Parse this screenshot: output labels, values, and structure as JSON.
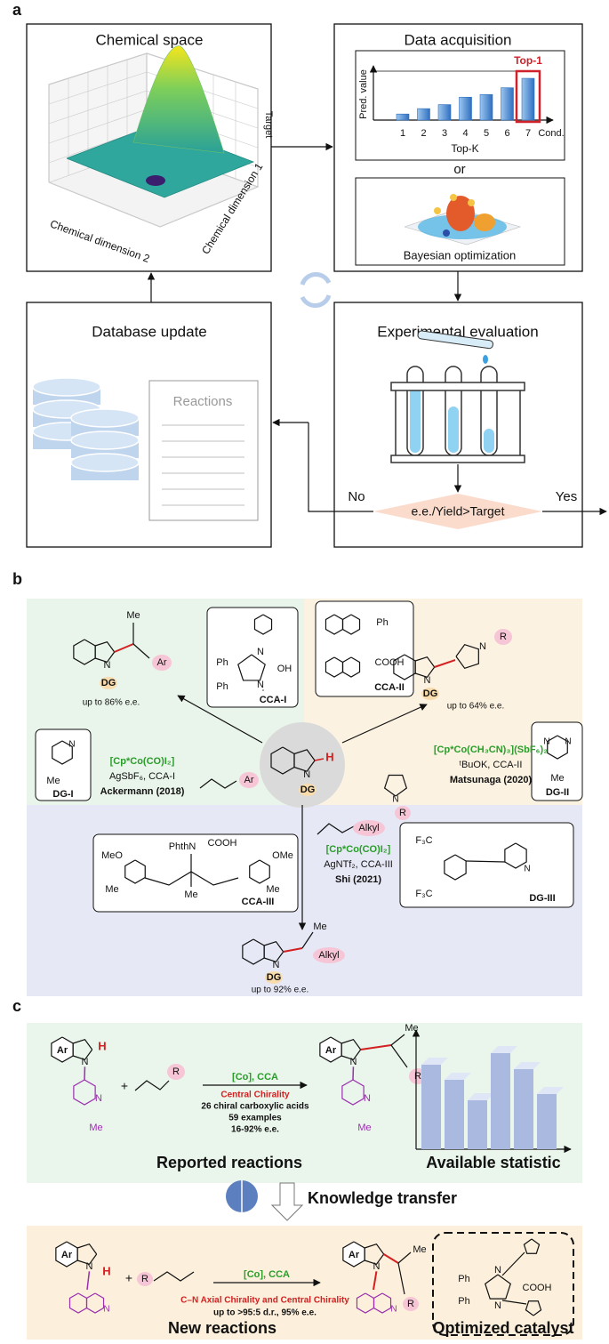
{
  "panel_a": {
    "label": "a",
    "chemical_space": {
      "title": "Chemical space",
      "z_axis_label": "Target",
      "axis_1_label": "Chemical dimension 1",
      "axis_2_label": "Chemical dimension 2"
    },
    "data_acquisition": {
      "title": "Data acquisition",
      "chart": {
        "type": "bar",
        "y_label": "Pred. value",
        "x_label": "Top-K",
        "x_end_label": "Cond.",
        "highlight_label": "Top-1",
        "categories": [
          "1",
          "2",
          "3",
          "4",
          "5",
          "6",
          "7"
        ],
        "values": [
          0.9,
          1.7,
          2.3,
          3.4,
          3.8,
          4.8,
          6.2
        ],
        "ylim": [
          0,
          7
        ],
        "color": "#2f6fc0",
        "highlight_color": "#d0202a"
      },
      "connector": "or",
      "alternative": "Bayesian optimization"
    },
    "database_update": {
      "title": "Database update",
      "document_title": "Reactions"
    },
    "experimental_evaluation": {
      "title": "Experimental evaluation",
      "decision": "e.e./Yield>Target",
      "no_label": "No",
      "yes_label": "Yes"
    }
  },
  "panel_b": {
    "label": "b",
    "left_product": {
      "methyl": "Me",
      "aryl": "Ar",
      "nitrogen": "N",
      "directing_group": "DG",
      "selectivity": "up to 86% e.e."
    },
    "cca_1": {
      "phenyl_1": "Ph",
      "phenyl_2": "Ph",
      "nitrogen_1": "N",
      "nitrogen_2": "N",
      "hydroxyl": "OH",
      "name": "CCA-I"
    },
    "cca_2": {
      "phenyl": "Ph",
      "acid": "COOH",
      "name": "CCA-II"
    },
    "right_product": {
      "substituent": "R",
      "nitrogen_1": "N",
      "nitrogen_2": "N",
      "directing_group": "DG",
      "selectivity": "up to 64% e.e."
    },
    "dg_1": {
      "methyl": "Me",
      "nitrogen": "N",
      "name": "DG-I"
    },
    "dg_2": {
      "methyl": "Me",
      "nitrogen_1": "N",
      "nitrogen_2": "N",
      "name": "DG-II"
    },
    "ackermann": {
      "catalyst": "[Cp*Co(CO)I₂]",
      "additives": "AgSbF₆, CCA-I",
      "reference": "Ackermann (2018)",
      "alkene": "Ar"
    },
    "matsunaga": {
      "catalyst": "[Cp*Co(CH₃CN)₃](SbF₆)₂",
      "additives": "ᵗBuOK, CCA-II",
      "reference": "Matsunaga (2020)",
      "maleimide": "R",
      "maleimide_n": "N"
    },
    "substrate": {
      "hydrogen": "H",
      "nitrogen": "N",
      "directing_group": "DG"
    },
    "shi": {
      "alkene": "Alkyl",
      "catalyst": "[Cp*Co(CO)I₂]",
      "additives": "AgNTf₂, CCA-III",
      "reference": "Shi (2021)"
    },
    "cca_3": {
      "methoxy_1": "MeO",
      "amine": "PhthN",
      "acid": "COOH",
      "methoxy_2": "OMe",
      "methyl_1": "Me",
      "methyl_2": "Me",
      "methyl_3": "Me",
      "name": "CCA-III"
    },
    "dg_3": {
      "trifluoromethyl_1": "F₃C",
      "trifluoromethyl_2": "F₃C",
      "nitrogen": "N",
      "name": "DG-III"
    },
    "bottom_product": {
      "methyl": "Me",
      "alkyl": "Alkyl",
      "nitrogen": "N",
      "directing_group": "DG",
      "selectivity": "up to 92% e.e."
    }
  },
  "panel_c": {
    "label": "c",
    "reported": {
      "aryl": "Ar",
      "hydrogen": "H",
      "nitrogen": "N",
      "pyridine_n": "N",
      "methyl": "Me",
      "plus": "+",
      "substituent": "R",
      "conditions": "[Co], CCA",
      "chirality": "Central Chirality",
      "acids": "26 chiral carboxylic acids",
      "examples": "59 examples",
      "selectivity": "16-92% e.e.",
      "product_aryl": "Ar",
      "product_nitrogen": "N",
      "product_methyl": "Me",
      "product_substituent": "R",
      "product_pyridine_n": "N",
      "product_pyridine_methyl": "Me",
      "title": "Reported reactions"
    },
    "statistic": "Available statistic",
    "transfer": "Knowledge transfer",
    "new": {
      "aryl": "Ar",
      "hydrogen": "H",
      "nitrogen": "N",
      "isoquinoline_n": "N",
      "plus": "+",
      "substituent": "R",
      "conditions": "[Co], CCA",
      "chirality": "C–N Axial Chirality and Central Chirality",
      "selectivity": "up to >95:5 d.r., 95% e.e.",
      "product_aryl": "Ar",
      "product_nitrogen": "N",
      "product_methyl": "Me",
      "product_substituent": "R",
      "product_isoquinoline_n": "N",
      "title": "New reactions"
    },
    "catalyst": {
      "phenyl_1": "Ph",
      "phenyl_2": "Ph",
      "nitrogen_1": "N",
      "nitrogen_2": "N",
      "acid": "COOH",
      "title": "Optimized catalyst"
    }
  }
}
